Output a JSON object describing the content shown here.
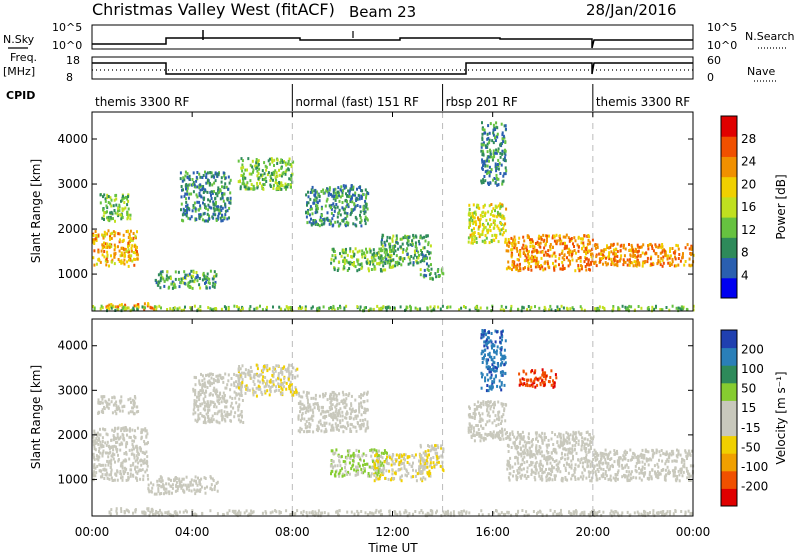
{
  "header": {
    "radar_title": "Christmas Valley West (fitACF)",
    "beam_title": "Beam 23",
    "date": "28/Jan/2016"
  },
  "aux_labels": {
    "nsky": "N.Sky",
    "nsearch": "N.Search",
    "freq": "Freq.",
    "freq_unit": "[MHz]",
    "nave": "Nave",
    "cpid": "CPID",
    "nsky_tick_hi": "10^5",
    "nsky_tick_lo": "10^0",
    "nsearch_tick_hi": "10^5",
    "nsearch_tick_lo": "10^0",
    "freq_tick_hi": "18",
    "freq_tick_lo": "8",
    "nave_tick_hi": "60",
    "nave_tick_lo": "0"
  },
  "cpid_segments": [
    {
      "label": "themis 3300 RF",
      "start": 0,
      "end": 8
    },
    {
      "label": "normal (fast) 151 RF",
      "start": 8,
      "end": 14
    },
    {
      "label": "rbsp 201 RF",
      "start": 14,
      "end": 20
    },
    {
      "label": "themis 3300 RF",
      "start": 20,
      "end": 24
    }
  ],
  "x_axis": {
    "label": "Time UT",
    "ticks": [
      "00:00",
      "04:00",
      "08:00",
      "12:00",
      "16:00",
      "20:00",
      "00:00"
    ]
  },
  "power_colorbar": {
    "label": "Power [dB]",
    "ticks": [
      "28",
      "24",
      "20",
      "16",
      "12",
      "8",
      "4"
    ]
  },
  "velocity_colorbar": {
    "label": "Velocity [m s⁻¹]",
    "ticks": [
      "200",
      "100",
      "50",
      "15",
      "-15",
      "-50",
      "-100",
      "-200"
    ]
  },
  "panel_ylabel": "Slant Range [km]",
  "chart_data": [
    {
      "type": "heatmap",
      "title": "Power",
      "xlabel": "Time UT",
      "ylabel": "Slant Range [km]",
      "xlim": [
        0,
        24
      ],
      "ylim": [
        180,
        4600
      ],
      "yticks": [
        1000,
        2000,
        3000,
        4000
      ],
      "colorbar": {
        "label": "Power [dB]",
        "range": [
          0,
          30
        ]
      },
      "regions": [
        {
          "t": [
            0.0,
            1.8
          ],
          "r": [
            1200,
            2000
          ],
          "value": 20
        },
        {
          "t": [
            0.3,
            1.5
          ],
          "r": [
            2200,
            2800
          ],
          "value": 12
        },
        {
          "t": [
            0.5,
            2.5
          ],
          "r": [
            250,
            380
          ],
          "value": 22
        },
        {
          "t": [
            2.5,
            5.0
          ],
          "r": [
            700,
            1100
          ],
          "value": 10
        },
        {
          "t": [
            3.5,
            5.5
          ],
          "r": [
            2200,
            3300
          ],
          "value": 8
        },
        {
          "t": [
            5.8,
            8.0
          ],
          "r": [
            2900,
            3600
          ],
          "value": 12
        },
        {
          "t": [
            8.5,
            11.0
          ],
          "r": [
            2100,
            3000
          ],
          "value": 8
        },
        {
          "t": [
            9.5,
            12.0
          ],
          "r": [
            1100,
            1600
          ],
          "value": 12
        },
        {
          "t": [
            11.5,
            13.5
          ],
          "r": [
            1200,
            1900
          ],
          "value": 10
        },
        {
          "t": [
            13.0,
            14.0
          ],
          "r": [
            900,
            1150
          ],
          "value": 10
        },
        {
          "t": [
            15.0,
            16.5
          ],
          "r": [
            1700,
            2600
          ],
          "value": 16
        },
        {
          "t": [
            15.5,
            16.5
          ],
          "r": [
            3000,
            4400
          ],
          "value": 8
        },
        {
          "t": [
            16.5,
            20.0
          ],
          "r": [
            1100,
            1900
          ],
          "value": 22
        },
        {
          "t": [
            20.0,
            24.0
          ],
          "r": [
            1200,
            1700
          ],
          "value": 22
        },
        {
          "t": [
            0.0,
            24.0
          ],
          "r": [
            220,
            320
          ],
          "value": 12
        }
      ]
    },
    {
      "type": "heatmap",
      "title": "Velocity",
      "xlabel": "Time UT",
      "ylabel": "Slant Range [km]",
      "xlim": [
        0,
        24
      ],
      "ylim": [
        180,
        4600
      ],
      "yticks": [
        1000,
        2000,
        3000,
        4000
      ],
      "colorbar": {
        "label": "Velocity [m s⁻¹]",
        "range": [
          -200,
          200
        ]
      },
      "regions": [
        {
          "t": [
            0.0,
            2.2
          ],
          "r": [
            1000,
            2200
          ],
          "value": 0
        },
        {
          "t": [
            0.2,
            1.8
          ],
          "r": [
            2500,
            2900
          ],
          "value": 0
        },
        {
          "t": [
            0.5,
            2.5
          ],
          "r": [
            250,
            380
          ],
          "value": -20
        },
        {
          "t": [
            2.2,
            5.0
          ],
          "r": [
            700,
            1100
          ],
          "value": 0
        },
        {
          "t": [
            4.0,
            6.0
          ],
          "r": [
            2300,
            3400
          ],
          "value": 0
        },
        {
          "t": [
            5.8,
            8.2
          ],
          "r": [
            2900,
            3600
          ],
          "value": -30
        },
        {
          "t": [
            8.2,
            11.0
          ],
          "r": [
            2100,
            3000
          ],
          "value": 0
        },
        {
          "t": [
            9.5,
            11.8
          ],
          "r": [
            1100,
            1700
          ],
          "value": 40
        },
        {
          "t": [
            11.2,
            13.5
          ],
          "r": [
            1000,
            1600
          ],
          "value": -40
        },
        {
          "t": [
            13.0,
            14.0
          ],
          "r": [
            1200,
            1800
          ],
          "value": -30
        },
        {
          "t": [
            15.0,
            16.5
          ],
          "r": [
            1900,
            2800
          ],
          "value": 0
        },
        {
          "t": [
            15.5,
            16.5
          ],
          "r": [
            3000,
            4400
          ],
          "value": 150
        },
        {
          "t": [
            17.0,
            18.5
          ],
          "r": [
            3100,
            3500
          ],
          "value": -150
        },
        {
          "t": [
            16.5,
            20.0
          ],
          "r": [
            1000,
            2100
          ],
          "value": 0
        },
        {
          "t": [
            20.0,
            24.0
          ],
          "r": [
            1000,
            1700
          ],
          "value": 0
        },
        {
          "t": [
            2.0,
            24.0
          ],
          "r": [
            220,
            340
          ],
          "value": -20
        }
      ]
    }
  ],
  "colors": {
    "power_scale": [
      "#0000f0",
      "#2a5fb0",
      "#2e8a5a",
      "#66c240",
      "#c0e020",
      "#f0d000",
      "#f09000",
      "#f05000",
      "#e00000"
    ],
    "velocity_scale": [
      "#e00000",
      "#f05000",
      "#f0a000",
      "#f0d000",
      "#c8c8bc",
      "#c8c8bc",
      "#86cc30",
      "#2e8a5a",
      "#2a7fb8",
      "#2040b0"
    ],
    "grid_dash": "#bbbbbb",
    "low_gs": "#c8c8bc"
  }
}
